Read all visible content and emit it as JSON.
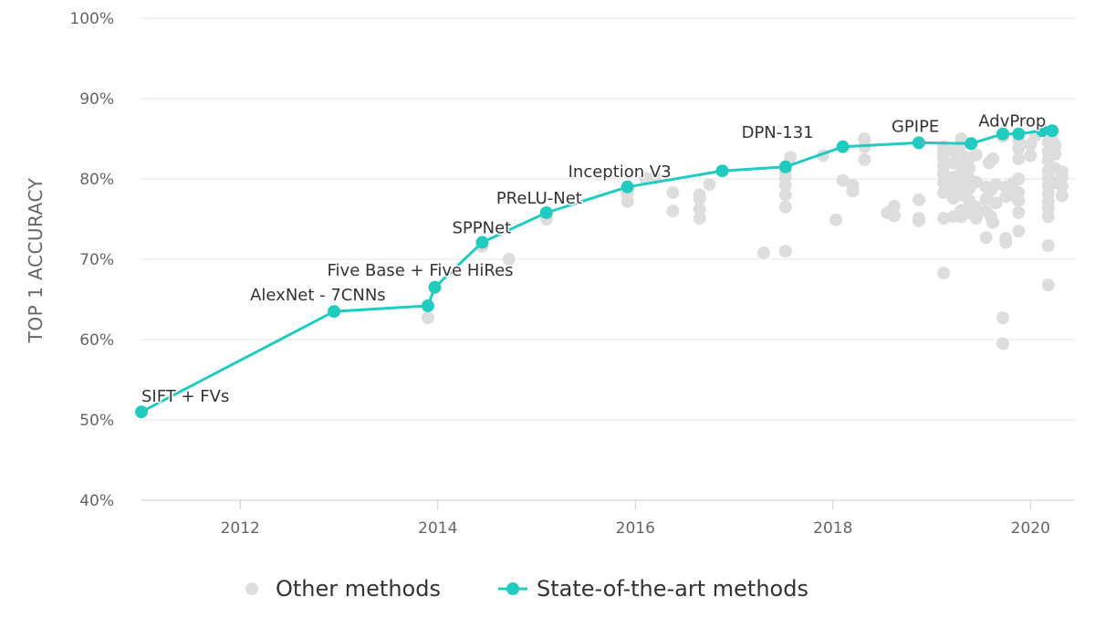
{
  "colors": {
    "other": "#dddddd",
    "sota": "#21cbc0",
    "grid": "#e6e6e6",
    "axis": "#cccccc"
  },
  "chart_data": {
    "type": "scatter",
    "ylabel": "TOP 1 ACCURACY",
    "xlabel": "",
    "xlim": [
      2011.0,
      2020.45
    ],
    "ylim": [
      40,
      100
    ],
    "x_ticks": [
      2012,
      2014,
      2016,
      2018,
      2020
    ],
    "y_ticks": [
      40,
      50,
      60,
      70,
      80,
      90,
      100
    ],
    "y_tick_suffix": "%",
    "grid": true,
    "legend": "bottom",
    "legend_entries": [
      "Other methods",
      "State-of-the-art methods"
    ],
    "series": [
      {
        "name": "State-of-the-art methods",
        "style": "line-markers",
        "points": [
          {
            "x": 2011.0,
            "y": 51.0,
            "label": "SIFT + FVs"
          },
          {
            "x": 2012.95,
            "y": 63.5,
            "label": "AlexNet - 7CNNs"
          },
          {
            "x": 2013.9,
            "y": 64.2
          },
          {
            "x": 2013.97,
            "y": 66.5,
            "label": "Five Base + Five HiRes"
          },
          {
            "x": 2014.45,
            "y": 72.1,
            "label": "SPPNet"
          },
          {
            "x": 2015.1,
            "y": 75.8,
            "label": "PReLU-Net"
          },
          {
            "x": 2015.92,
            "y": 79.0,
            "label": "Inception V3"
          },
          {
            "x": 2016.88,
            "y": 81.0
          },
          {
            "x": 2017.52,
            "y": 81.5
          },
          {
            "x": 2018.1,
            "y": 84.0,
            "label": "DPN-131"
          },
          {
            "x": 2018.87,
            "y": 84.5,
            "label": "GPIPE"
          },
          {
            "x": 2019.4,
            "y": 84.4
          },
          {
            "x": 2019.72,
            "y": 85.6
          },
          {
            "x": 2019.88,
            "y": 85.6,
            "label": "AdvProp"
          },
          {
            "x": 2020.12,
            "y": 86.0
          },
          {
            "x": 2020.22,
            "y": 86.0
          }
        ]
      },
      {
        "name": "Other methods",
        "style": "markers",
        "points": [
          {
            "x": 2013.9,
            "y": 62.7
          },
          {
            "x": 2014.45,
            "y": 71.6
          },
          {
            "x": 2014.72,
            "y": 70.0
          },
          {
            "x": 2015.1,
            "y": 75.0
          },
          {
            "x": 2015.92,
            "y": 77.2
          },
          {
            "x": 2015.92,
            "y": 78.2
          },
          {
            "x": 2016.1,
            "y": 80.1
          },
          {
            "x": 2016.2,
            "y": 80.2
          },
          {
            "x": 2016.38,
            "y": 78.3
          },
          {
            "x": 2016.38,
            "y": 76.0
          },
          {
            "x": 2016.65,
            "y": 78.0
          },
          {
            "x": 2016.65,
            "y": 77.5
          },
          {
            "x": 2016.65,
            "y": 76.2
          },
          {
            "x": 2016.65,
            "y": 75.1
          },
          {
            "x": 2016.75,
            "y": 79.3
          },
          {
            "x": 2017.3,
            "y": 70.8
          },
          {
            "x": 2017.52,
            "y": 71.0
          },
          {
            "x": 2017.52,
            "y": 76.5
          },
          {
            "x": 2017.52,
            "y": 78.0
          },
          {
            "x": 2017.52,
            "y": 79.2
          },
          {
            "x": 2017.52,
            "y": 80.2
          },
          {
            "x": 2017.52,
            "y": 81.0
          },
          {
            "x": 2017.57,
            "y": 82.7
          },
          {
            "x": 2017.9,
            "y": 82.9
          },
          {
            "x": 2018.03,
            "y": 74.9
          },
          {
            "x": 2018.1,
            "y": 79.8
          },
          {
            "x": 2018.2,
            "y": 79.2
          },
          {
            "x": 2018.2,
            "y": 78.5
          },
          {
            "x": 2018.32,
            "y": 85.0
          },
          {
            "x": 2018.32,
            "y": 84.0
          },
          {
            "x": 2018.32,
            "y": 82.4
          },
          {
            "x": 2018.55,
            "y": 75.8
          },
          {
            "x": 2018.62,
            "y": 76.6
          },
          {
            "x": 2018.62,
            "y": 75.4
          },
          {
            "x": 2018.87,
            "y": 77.4
          },
          {
            "x": 2018.87,
            "y": 75.1
          },
          {
            "x": 2018.87,
            "y": 74.8
          },
          {
            "x": 2019.12,
            "y": 68.3
          },
          {
            "x": 2019.12,
            "y": 75.1
          },
          {
            "x": 2019.12,
            "y": 78.3
          },
          {
            "x": 2019.12,
            "y": 79.5
          },
          {
            "x": 2019.12,
            "y": 80.6
          },
          {
            "x": 2019.12,
            "y": 81.5
          },
          {
            "x": 2019.12,
            "y": 82.5
          },
          {
            "x": 2019.12,
            "y": 83.3
          },
          {
            "x": 2019.12,
            "y": 84.0
          },
          {
            "x": 2019.22,
            "y": 75.3
          },
          {
            "x": 2019.22,
            "y": 77.6
          },
          {
            "x": 2019.22,
            "y": 79.0
          },
          {
            "x": 2019.22,
            "y": 80.2
          },
          {
            "x": 2019.22,
            "y": 82.0
          },
          {
            "x": 2019.22,
            "y": 83.5
          },
          {
            "x": 2019.3,
            "y": 75.3
          },
          {
            "x": 2019.3,
            "y": 76.1
          },
          {
            "x": 2019.3,
            "y": 78.0
          },
          {
            "x": 2019.3,
            "y": 79.2
          },
          {
            "x": 2019.3,
            "y": 80.8
          },
          {
            "x": 2019.3,
            "y": 82.1
          },
          {
            "x": 2019.3,
            "y": 83.0
          },
          {
            "x": 2019.3,
            "y": 85.0
          },
          {
            "x": 2019.3,
            "y": 84.3
          },
          {
            "x": 2019.38,
            "y": 75.8
          },
          {
            "x": 2019.38,
            "y": 77.3
          },
          {
            "x": 2019.38,
            "y": 78.8
          },
          {
            "x": 2019.38,
            "y": 80.0
          },
          {
            "x": 2019.38,
            "y": 81.3
          },
          {
            "x": 2019.38,
            "y": 82.6
          },
          {
            "x": 2019.45,
            "y": 75.1
          },
          {
            "x": 2019.45,
            "y": 76.5
          },
          {
            "x": 2019.45,
            "y": 79.6
          },
          {
            "x": 2019.45,
            "y": 83.0
          },
          {
            "x": 2019.55,
            "y": 72.7
          },
          {
            "x": 2019.55,
            "y": 76.0
          },
          {
            "x": 2019.55,
            "y": 77.5
          },
          {
            "x": 2019.55,
            "y": 79.0
          },
          {
            "x": 2019.58,
            "y": 82.0
          },
          {
            "x": 2019.6,
            "y": 75.3
          },
          {
            "x": 2019.6,
            "y": 78.6
          },
          {
            "x": 2019.62,
            "y": 82.5
          },
          {
            "x": 2019.62,
            "y": 74.6
          },
          {
            "x": 2019.65,
            "y": 77.0
          },
          {
            "x": 2019.65,
            "y": 79.3
          },
          {
            "x": 2019.72,
            "y": 59.5
          },
          {
            "x": 2019.72,
            "y": 62.7
          },
          {
            "x": 2019.75,
            "y": 72.1
          },
          {
            "x": 2019.75,
            "y": 72.6
          },
          {
            "x": 2019.75,
            "y": 77.8
          },
          {
            "x": 2019.75,
            "y": 79.0
          },
          {
            "x": 2019.72,
            "y": 85.3
          },
          {
            "x": 2019.82,
            "y": 78.0
          },
          {
            "x": 2019.82,
            "y": 79.4
          },
          {
            "x": 2019.88,
            "y": 73.5
          },
          {
            "x": 2019.88,
            "y": 75.8
          },
          {
            "x": 2019.88,
            "y": 77.3
          },
          {
            "x": 2019.88,
            "y": 78.3
          },
          {
            "x": 2019.88,
            "y": 80.0
          },
          {
            "x": 2019.88,
            "y": 82.5
          },
          {
            "x": 2019.88,
            "y": 83.8
          },
          {
            "x": 2019.88,
            "y": 84.8
          },
          {
            "x": 2020.0,
            "y": 82.9
          },
          {
            "x": 2020.0,
            "y": 84.3
          },
          {
            "x": 2020.05,
            "y": 85.4
          },
          {
            "x": 2020.18,
            "y": 66.8
          },
          {
            "x": 2020.18,
            "y": 71.7
          },
          {
            "x": 2020.18,
            "y": 75.3
          },
          {
            "x": 2020.18,
            "y": 76.3
          },
          {
            "x": 2020.18,
            "y": 77.2
          },
          {
            "x": 2020.18,
            "y": 78.2
          },
          {
            "x": 2020.18,
            "y": 79.2
          },
          {
            "x": 2020.18,
            "y": 80.1
          },
          {
            "x": 2020.18,
            "y": 81.0
          },
          {
            "x": 2020.18,
            "y": 82.3
          },
          {
            "x": 2020.18,
            "y": 83.4
          },
          {
            "x": 2020.18,
            "y": 84.6
          },
          {
            "x": 2020.25,
            "y": 79.5
          },
          {
            "x": 2020.25,
            "y": 81.3
          },
          {
            "x": 2020.25,
            "y": 83.1
          },
          {
            "x": 2020.25,
            "y": 84.2
          },
          {
            "x": 2020.32,
            "y": 77.9
          },
          {
            "x": 2020.32,
            "y": 79.1
          },
          {
            "x": 2020.32,
            "y": 80.3
          },
          {
            "x": 2020.32,
            "y": 80.9
          },
          {
            "x": 2020.22,
            "y": 84.8
          }
        ]
      }
    ]
  }
}
